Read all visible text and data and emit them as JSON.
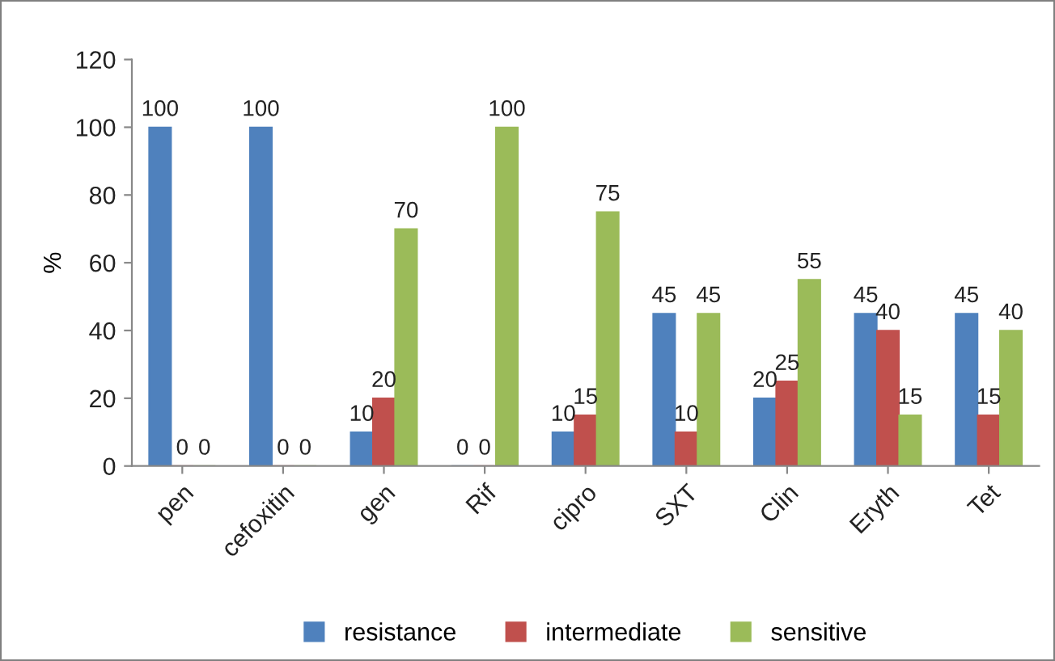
{
  "chart_data": {
    "type": "bar",
    "categories": [
      "pen",
      "cefoxitin",
      "gen",
      "Rif",
      "cipro",
      "SXT",
      "Clin",
      "Eryth",
      "Tet"
    ],
    "series": [
      {
        "name": "resistance",
        "color": "#4f81bd",
        "values": [
          100,
          100,
          10,
          0,
          10,
          45,
          20,
          45,
          45
        ]
      },
      {
        "name": "intermediate",
        "color": "#c0504d",
        "values": [
          0,
          0,
          20,
          0,
          15,
          10,
          25,
          40,
          15
        ]
      },
      {
        "name": "sensitive",
        "color": "#9bbb59",
        "values": [
          0,
          0,
          70,
          100,
          75,
          45,
          55,
          15,
          40
        ]
      }
    ],
    "ylabel": "%",
    "ylim": [
      0,
      120
    ],
    "yticks": [
      0,
      20,
      40,
      60,
      80,
      100,
      120
    ],
    "data_labels": true,
    "grid": false,
    "legend": "bottom"
  }
}
